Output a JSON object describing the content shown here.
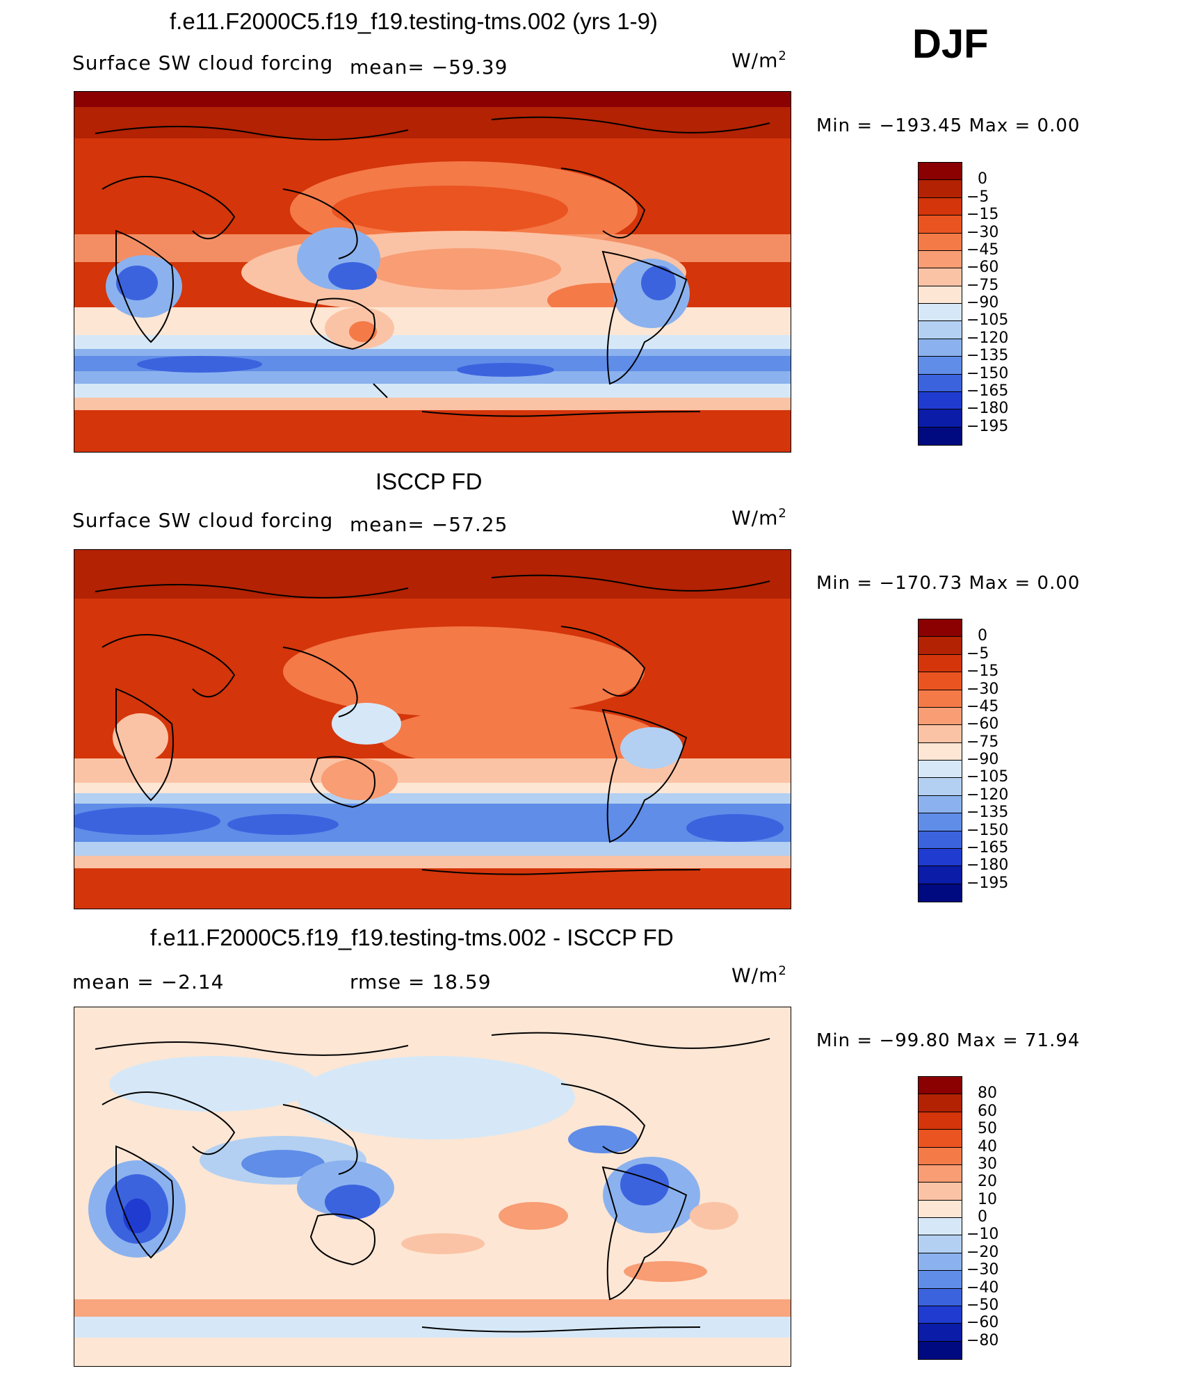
{
  "season": "DJF",
  "units_base": "W/m",
  "units_exp": "2",
  "panels": [
    {
      "title": "f.e11.F2000C5.f19_f19.testing-tms.002 (yrs 1-9)",
      "variable": "Surface SW cloud forcing",
      "stat1": "mean= −59.39",
      "stat2": "",
      "minmax": "Min  =  −193.45  Max  =      0.00",
      "levels": [
        "0",
        "−5",
        "−15",
        "−30",
        "−45",
        "−60",
        "−75",
        "−90",
        "−105",
        "−120",
        "−135",
        "−150",
        "−165",
        "−180",
        "−195"
      ],
      "colors": [
        "#8b0000",
        "#b22203",
        "#d4350a",
        "#ea5420",
        "#f47a48",
        "#f89d74",
        "#fbc3a5",
        "#fde6d4",
        "#d6e8f7",
        "#b3d0f2",
        "#8bb2ee",
        "#5f8de8",
        "#3c63de",
        "#1f3bd0",
        "#0a1ca8",
        "#000a80"
      ]
    },
    {
      "title": "ISCCP FD",
      "variable": "Surface SW cloud forcing",
      "stat1": "mean= −57.25",
      "stat2": "",
      "minmax": "Min  =  −170.73  Max  =      0.00",
      "levels": [
        "0",
        "−5",
        "−15",
        "−30",
        "−45",
        "−60",
        "−75",
        "−90",
        "−105",
        "−120",
        "−135",
        "−150",
        "−165",
        "−180",
        "−195"
      ],
      "colors": [
        "#8b0000",
        "#b22203",
        "#d4350a",
        "#ea5420",
        "#f47a48",
        "#f89d74",
        "#fbc3a5",
        "#fde6d4",
        "#d6e8f7",
        "#b3d0f2",
        "#8bb2ee",
        "#5f8de8",
        "#3c63de",
        "#1f3bd0",
        "#0a1ca8",
        "#000a80"
      ]
    },
    {
      "title": "f.e11.F2000C5.f19_f19.testing-tms.002 - ISCCP FD",
      "variable": "",
      "stat1": "mean  =    −2.14",
      "stat2": "rmse  =    18.59",
      "minmax": "Min  =  −99.80  Max  =    71.94",
      "levels": [
        "80",
        "60",
        "50",
        "40",
        "30",
        "20",
        "10",
        "0",
        "−10",
        "−20",
        "−30",
        "−40",
        "−50",
        "−60",
        "−80"
      ],
      "colors": [
        "#8b0000",
        "#b22203",
        "#d4350a",
        "#ea5420",
        "#f47a48",
        "#f89d74",
        "#fbc3a5",
        "#fde6d4",
        "#d6e8f7",
        "#b3d0f2",
        "#8bb2ee",
        "#5f8de8",
        "#3c63de",
        "#1f3bd0",
        "#0a1ca8",
        "#000a80"
      ]
    }
  ]
}
